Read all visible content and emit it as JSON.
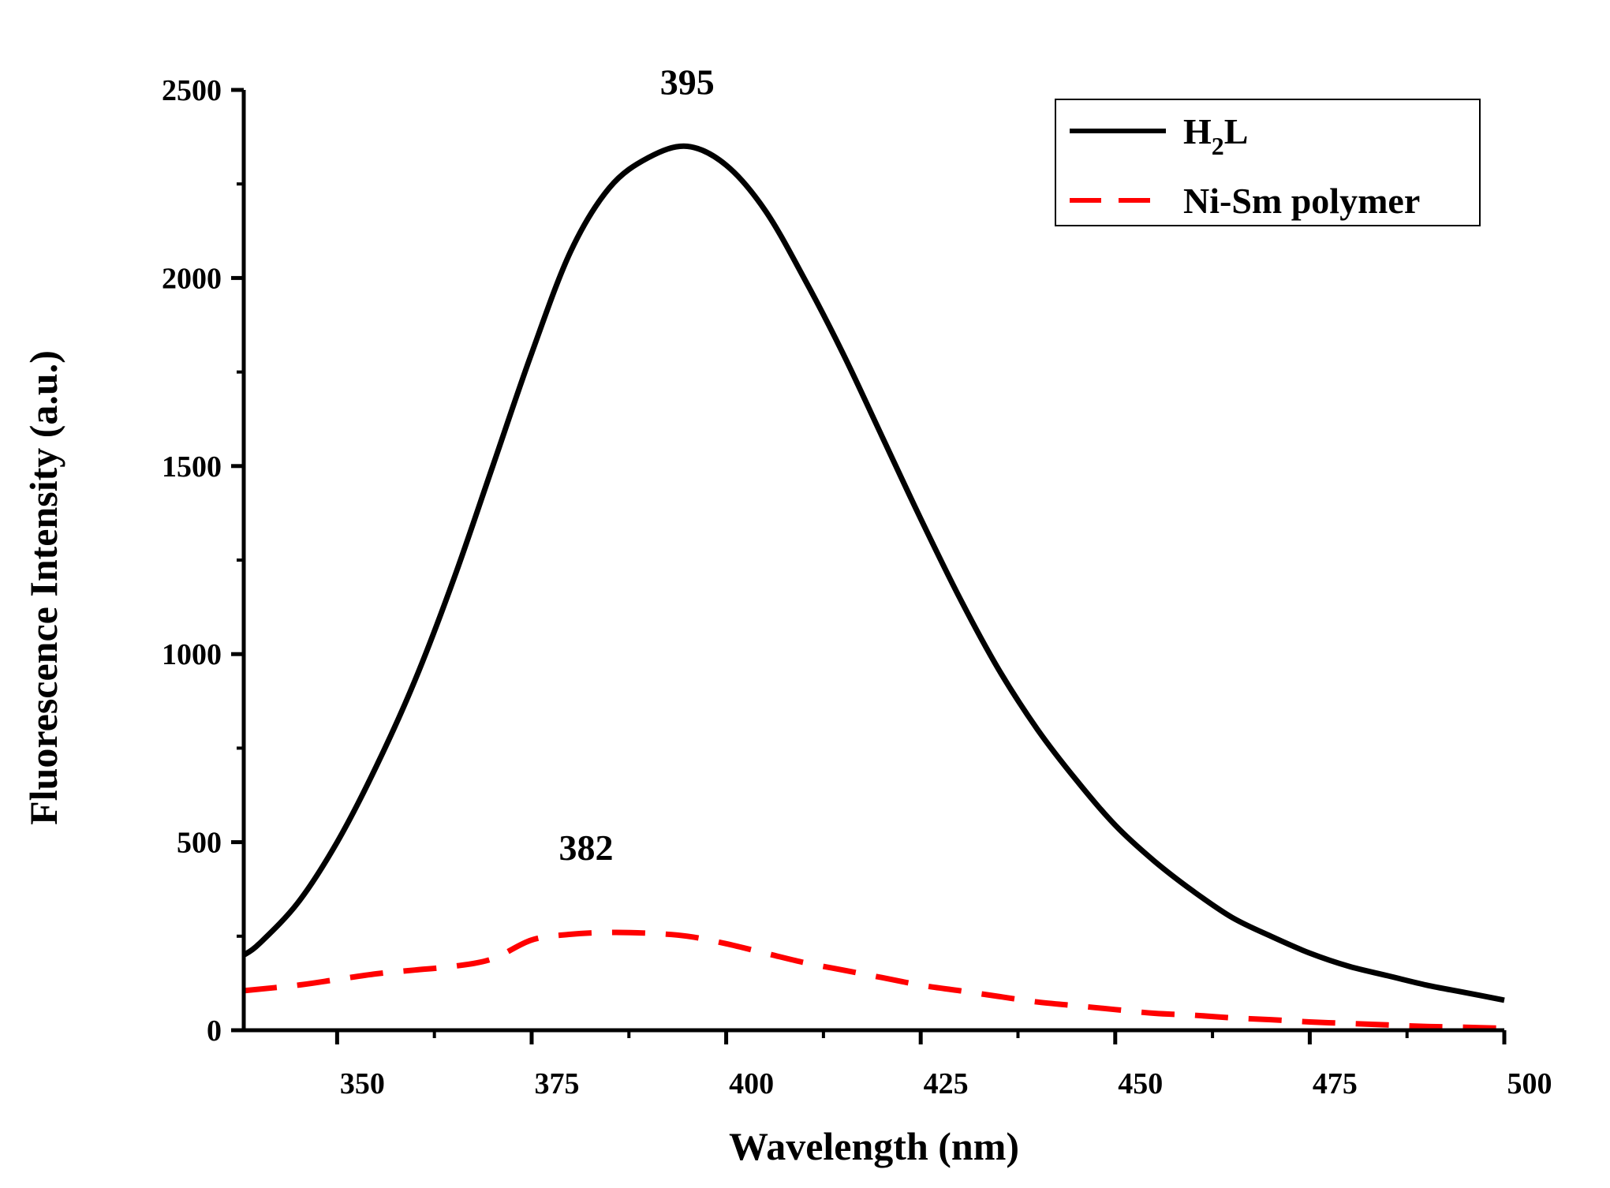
{
  "chart_data": {
    "type": "line",
    "title": "",
    "xlabel": "Wavelength (nm)",
    "ylabel": "Fluorescence Intensity (a.u.)",
    "xlim": [
      338,
      500
    ],
    "ylim": [
      0,
      2500
    ],
    "xticks": [
      350,
      375,
      400,
      425,
      450,
      475,
      500
    ],
    "xtick_labels": [
      "350",
      "375",
      "400",
      "425",
      "450",
      "475",
      "500"
    ],
    "yticks": [
      0,
      500,
      1000,
      1500,
      2000,
      2500
    ],
    "ytick_labels": [
      "0",
      "500",
      "1000",
      "1500",
      "2000",
      "2500"
    ],
    "grid": false,
    "legend_position": "top-right",
    "series": [
      {
        "name": "H2L",
        "label_main": "H",
        "label_sub": "2",
        "label_tail": "L",
        "color": "#000000",
        "style": "solid",
        "x": [
          338,
          340,
          345,
          350,
          355,
          360,
          365,
          370,
          375,
          380,
          385,
          390,
          395,
          400,
          405,
          410,
          415,
          420,
          425,
          430,
          435,
          440,
          445,
          450,
          455,
          460,
          465,
          470,
          475,
          480,
          485,
          490,
          495,
          500
        ],
        "y": [
          200,
          230,
          340,
          500,
          700,
          930,
          1200,
          1500,
          1800,
          2070,
          2240,
          2320,
          2350,
          2300,
          2180,
          2000,
          1800,
          1580,
          1360,
          1150,
          960,
          800,
          665,
          545,
          450,
          370,
          300,
          250,
          205,
          170,
          145,
          120,
          100,
          80
        ]
      },
      {
        "name": "Ni-Sm polymer",
        "color": "#ff0000",
        "style": "dashed",
        "x": [
          338,
          345,
          350,
          355,
          360,
          365,
          370,
          375,
          380,
          385,
          390,
          395,
          400,
          405,
          410,
          415,
          420,
          425,
          430,
          435,
          440,
          445,
          450,
          455,
          460,
          465,
          470,
          475,
          480,
          485,
          490,
          495,
          500
        ],
        "y": [
          105,
          120,
          135,
          150,
          160,
          170,
          190,
          240,
          255,
          260,
          258,
          250,
          230,
          205,
          180,
          160,
          140,
          120,
          105,
          90,
          75,
          65,
          55,
          45,
          40,
          33,
          28,
          22,
          18,
          14,
          10,
          8,
          5
        ]
      }
    ],
    "annotations": [
      {
        "text": "395",
        "x": 395,
        "y": 2350
      },
      {
        "text": "382",
        "x": 382,
        "y": 260
      }
    ]
  }
}
